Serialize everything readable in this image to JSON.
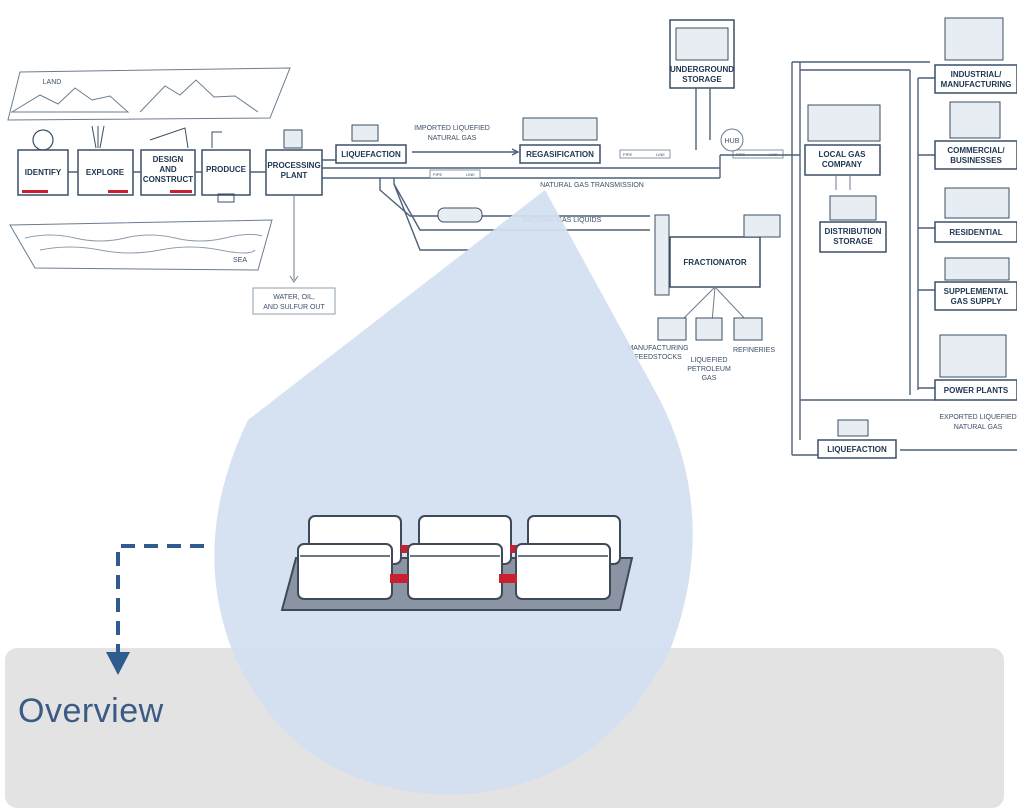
{
  "diagram": {
    "land_label": "LAND",
    "sea_label": "SEA",
    "identify": "IDENTIFY",
    "explore": "EXPLORE",
    "design_construct": [
      "DESIGN",
      "AND",
      "CONSTRUCT"
    ],
    "produce": "PRODUCE",
    "processing_plant": [
      "PROCESSING",
      "PLANT"
    ],
    "liquefaction_left": "LIQUEFACTION",
    "imported_lng": [
      "IMPORTED LIQUEFIED",
      "NATURAL GAS"
    ],
    "regasification": "REGASIFICATION",
    "underground_storage": [
      "UNDERGROUND",
      "STORAGE"
    ],
    "hub": "HUB",
    "natural_gas_transmission": "NATURAL GAS TRANSMISSION",
    "natural_gas_liquids": "NATURAL GAS LIQUIDS",
    "water_oil_sulfur": [
      "WATER, OIL,",
      "AND SULFUR OUT"
    ],
    "fractionator": "FRACTIONATOR",
    "manufacturing_feedstocks": [
      "MANUFACTURING",
      "FEEDSTOCKS"
    ],
    "liquefied_petroleum_gas": [
      "LIQUEFIED",
      "PETROLEUM",
      "GAS"
    ],
    "refineries": "REFINERIES",
    "local_gas_company": [
      "LOCAL GAS",
      "COMPANY"
    ],
    "distribution_storage": [
      "DISTRIBUTION",
      "STORAGE"
    ],
    "industrial": [
      "INDUSTRIAL/",
      "MANUFACTURING"
    ],
    "commercial": [
      "COMMERCIAL/",
      "BUSINESSES"
    ],
    "residential": "RESIDENTIAL",
    "supplemental": [
      "SUPPLEMENTAL",
      "GAS SUPPLY"
    ],
    "power_plants": "POWER PLANTS",
    "exported_lng": [
      "EXPORTED LIQUEFIED",
      "NATURAL GAS"
    ],
    "liquefaction_right": "LIQUEFACTION",
    "pipe_tag": "PIPE",
    "line_tag": "LINE"
  },
  "overview": {
    "title": "Overview"
  },
  "colors": {
    "callout_fill": "#d3e0f0",
    "overview_bg": "#e3e3e3",
    "title_color": "#3c5a86",
    "tank_red": "#c8202f"
  }
}
